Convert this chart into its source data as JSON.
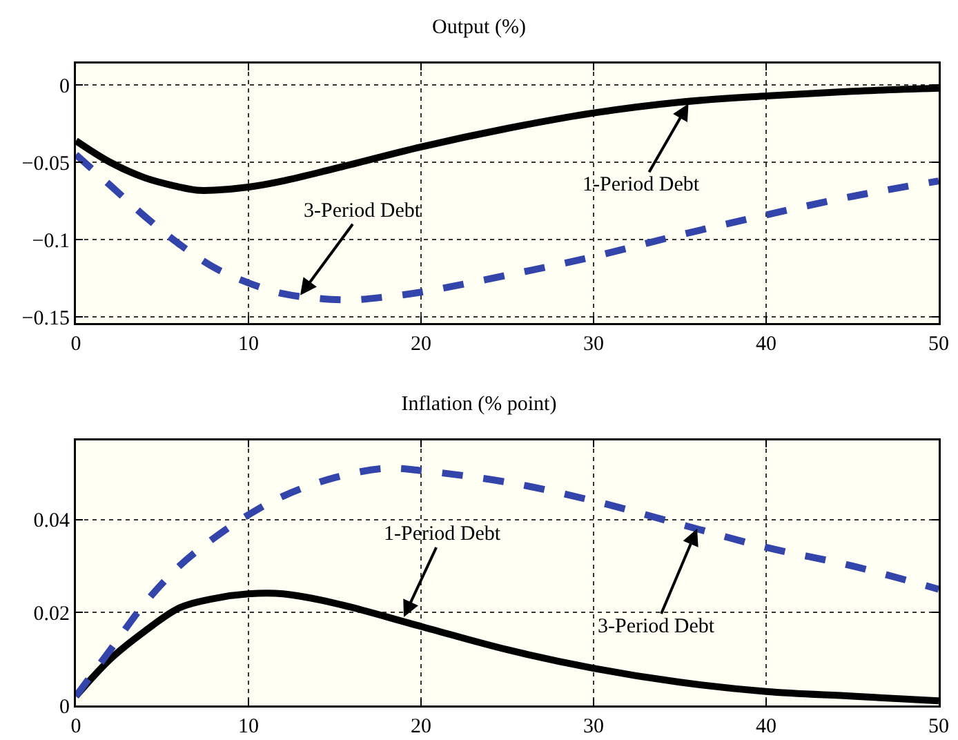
{
  "chart_data": [
    {
      "type": "line",
      "title": "Output (%)",
      "xlim": [
        0,
        50
      ],
      "xticks": [
        0,
        10,
        20,
        30,
        40,
        50
      ],
      "ylim": [
        -0.154,
        0.014
      ],
      "yticks": [
        {
          "value": -0.15,
          "label": "−0.15"
        },
        {
          "value": -0.1,
          "label": "−0.1"
        },
        {
          "value": -0.05,
          "label": "−0.05"
        },
        0
      ],
      "grid": true,
      "series": [
        {
          "color": "#000000",
          "line_style": "solid",
          "x": [
            0,
            2,
            4,
            6,
            7,
            8,
            10,
            12,
            15,
            20,
            25,
            30,
            35,
            40,
            45,
            50
          ],
          "values": [
            -0.036,
            -0.05,
            -0.06,
            -0.066,
            -0.068,
            -0.068,
            -0.066,
            -0.062,
            -0.054,
            -0.04,
            -0.028,
            -0.018,
            -0.011,
            -0.007,
            -0.004,
            -0.002
          ]
        },
        {
          "color": "#3344aa",
          "line_style": "dashed",
          "x": [
            0,
            2,
            4,
            6,
            8,
            10,
            12,
            14,
            16,
            18,
            20,
            25,
            30,
            35,
            40,
            45,
            50
          ],
          "values": [
            -0.045,
            -0.065,
            -0.085,
            -0.103,
            -0.118,
            -0.128,
            -0.135,
            -0.138,
            -0.139,
            -0.137,
            -0.134,
            -0.123,
            -0.111,
            -0.097,
            -0.084,
            -0.072,
            -0.062
          ]
        }
      ],
      "annotations": [
        {
          "text": "3-Period Debt",
          "x": 13,
          "y": -0.136
        },
        {
          "text": "1-Period Debt",
          "x": 35.5,
          "y": -0.012
        }
      ]
    },
    {
      "type": "line",
      "title": "Inflation (% point)",
      "xlim": [
        0,
        50
      ],
      "xticks": [
        0,
        10,
        20,
        30,
        40,
        50
      ],
      "ylim": [
        0,
        0.057
      ],
      "yticks": [
        0,
        0.02,
        0.04
      ],
      "grid": true,
      "series": [
        {
          "color": "#000000",
          "line_style": "solid",
          "x": [
            0,
            2,
            4,
            6,
            8,
            10,
            12,
            15,
            20,
            25,
            30,
            35,
            40,
            45,
            50
          ],
          "values": [
            0.002,
            0.01,
            0.016,
            0.021,
            0.023,
            0.024,
            0.024,
            0.022,
            0.017,
            0.012,
            0.008,
            0.005,
            0.003,
            0.002,
            0.001
          ]
        },
        {
          "color": "#3344aa",
          "line_style": "dashed",
          "x": [
            0,
            2,
            4,
            6,
            8,
            10,
            12,
            15,
            18,
            20,
            25,
            30,
            35,
            40,
            45,
            50
          ],
          "values": [
            0.002,
            0.012,
            0.022,
            0.03,
            0.036,
            0.041,
            0.045,
            0.049,
            0.051,
            0.0505,
            0.048,
            0.044,
            0.039,
            0.034,
            0.03,
            0.025
          ]
        }
      ],
      "annotations": [
        {
          "text": "1-Period Debt",
          "x": 19,
          "y": 0.019
        },
        {
          "text": "3-Period Debt",
          "x": 36,
          "y": 0.038
        }
      ]
    }
  ]
}
